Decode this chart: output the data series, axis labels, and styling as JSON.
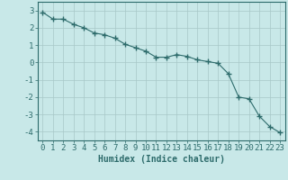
{
  "x": [
    0,
    1,
    2,
    3,
    4,
    5,
    6,
    7,
    8,
    9,
    10,
    11,
    12,
    13,
    14,
    15,
    16,
    17,
    18,
    19,
    20,
    21,
    22,
    23
  ],
  "y": [
    2.9,
    2.5,
    2.5,
    2.2,
    2.0,
    1.7,
    1.6,
    1.4,
    1.05,
    0.85,
    0.65,
    0.3,
    0.3,
    0.45,
    0.35,
    0.15,
    0.05,
    -0.05,
    -0.65,
    -2.0,
    -2.1,
    -3.1,
    -3.7,
    -4.05
  ],
  "line_color": "#2d6b6b",
  "marker": "+",
  "marker_size": 4,
  "background_color": "#c8e8e8",
  "grid_color": "#a8c8c8",
  "xlabel": "Humidex (Indice chaleur)",
  "ylim": [
    -4.5,
    3.5
  ],
  "xlim": [
    -0.5,
    23.5
  ],
  "yticks": [
    -4,
    -3,
    -2,
    -1,
    0,
    1,
    2,
    3
  ],
  "xticks": [
    0,
    1,
    2,
    3,
    4,
    5,
    6,
    7,
    8,
    9,
    10,
    11,
    12,
    13,
    14,
    15,
    16,
    17,
    18,
    19,
    20,
    21,
    22,
    23
  ],
  "tick_color": "#2d6b6b",
  "label_color": "#2d6b6b",
  "font_size": 6.5
}
